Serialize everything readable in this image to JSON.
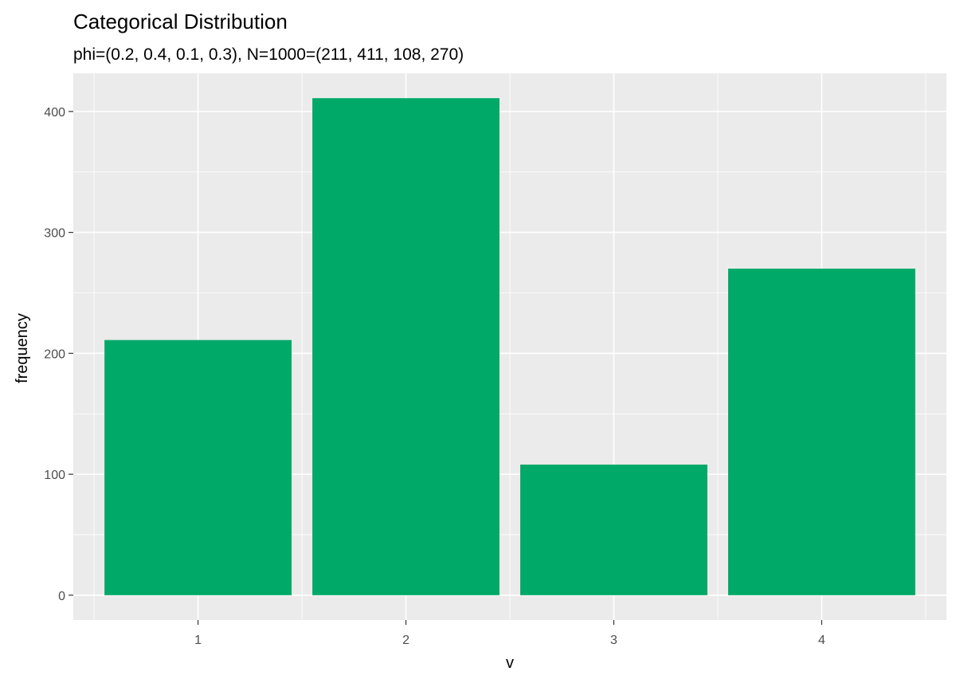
{
  "chart_data": {
    "type": "bar",
    "title": "Categorical Distribution",
    "subtitle": "phi=(0.2, 0.4, 0.1, 0.3), N=1000=(211, 411, 108, 270)",
    "xlabel": "v",
    "ylabel": "frequency",
    "categories": [
      "1",
      "2",
      "3",
      "4"
    ],
    "values": [
      211,
      411,
      108,
      270
    ],
    "ylim": [
      -20.55,
      431.55
    ],
    "yticks": [
      0,
      100,
      200,
      300,
      400
    ],
    "grid": true,
    "bar_color": "#00A968",
    "panel_color": "#EBEBEB"
  }
}
